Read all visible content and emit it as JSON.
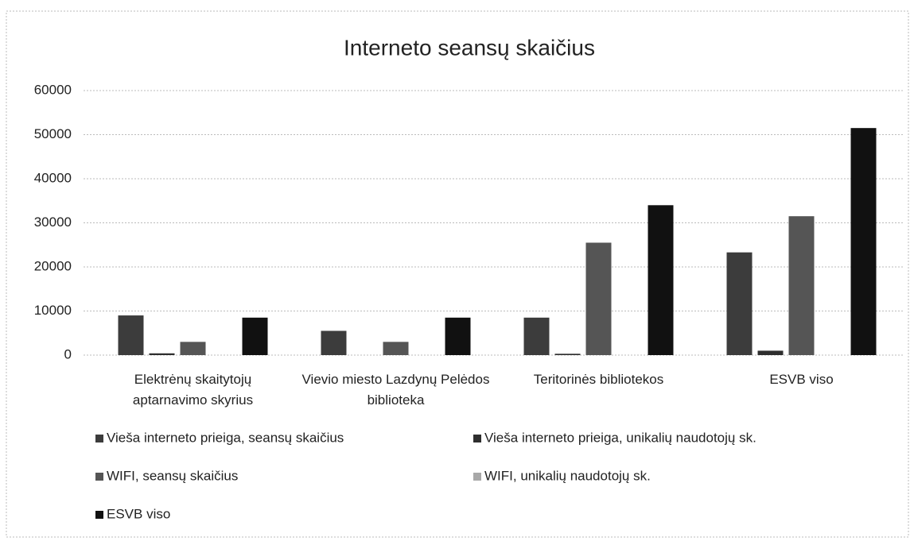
{
  "chart_data": {
    "type": "bar",
    "title": "Interneto seansų skaičius",
    "categories": [
      "Elektrėnų skaitytojų aptarnavimo skyrius",
      "Vievio miesto Lazdynų Pelėdos biblioteka",
      "Teritorinės bibliotekos",
      "ESVB viso"
    ],
    "series": [
      {
        "name": "Vieša interneto prieiga, seansų skaičius",
        "color": "#3c3c3c",
        "values": [
          9000,
          5500,
          8500,
          23300
        ]
      },
      {
        "name": "Vieša interneto prieiga, unikalių naudotojų sk.",
        "color": "#2e2e2e",
        "values": [
          400,
          0,
          300,
          1000
        ]
      },
      {
        "name": "WIFI, seansų skaičius",
        "color": "#555555",
        "values": [
          3000,
          3000,
          25500,
          31500
        ]
      },
      {
        "name": "WIFI, unikalių naudotojų sk.",
        "color": "#a8a8a8",
        "values": [
          0,
          0,
          0,
          0
        ]
      },
      {
        "name": "ESVB viso",
        "color": "#111111",
        "values": [
          8500,
          8500,
          34000,
          51500
        ]
      }
    ],
    "ylim": [
      0,
      60000
    ],
    "yticks": [
      0,
      10000,
      20000,
      30000,
      40000,
      50000,
      60000
    ],
    "grid": true
  }
}
